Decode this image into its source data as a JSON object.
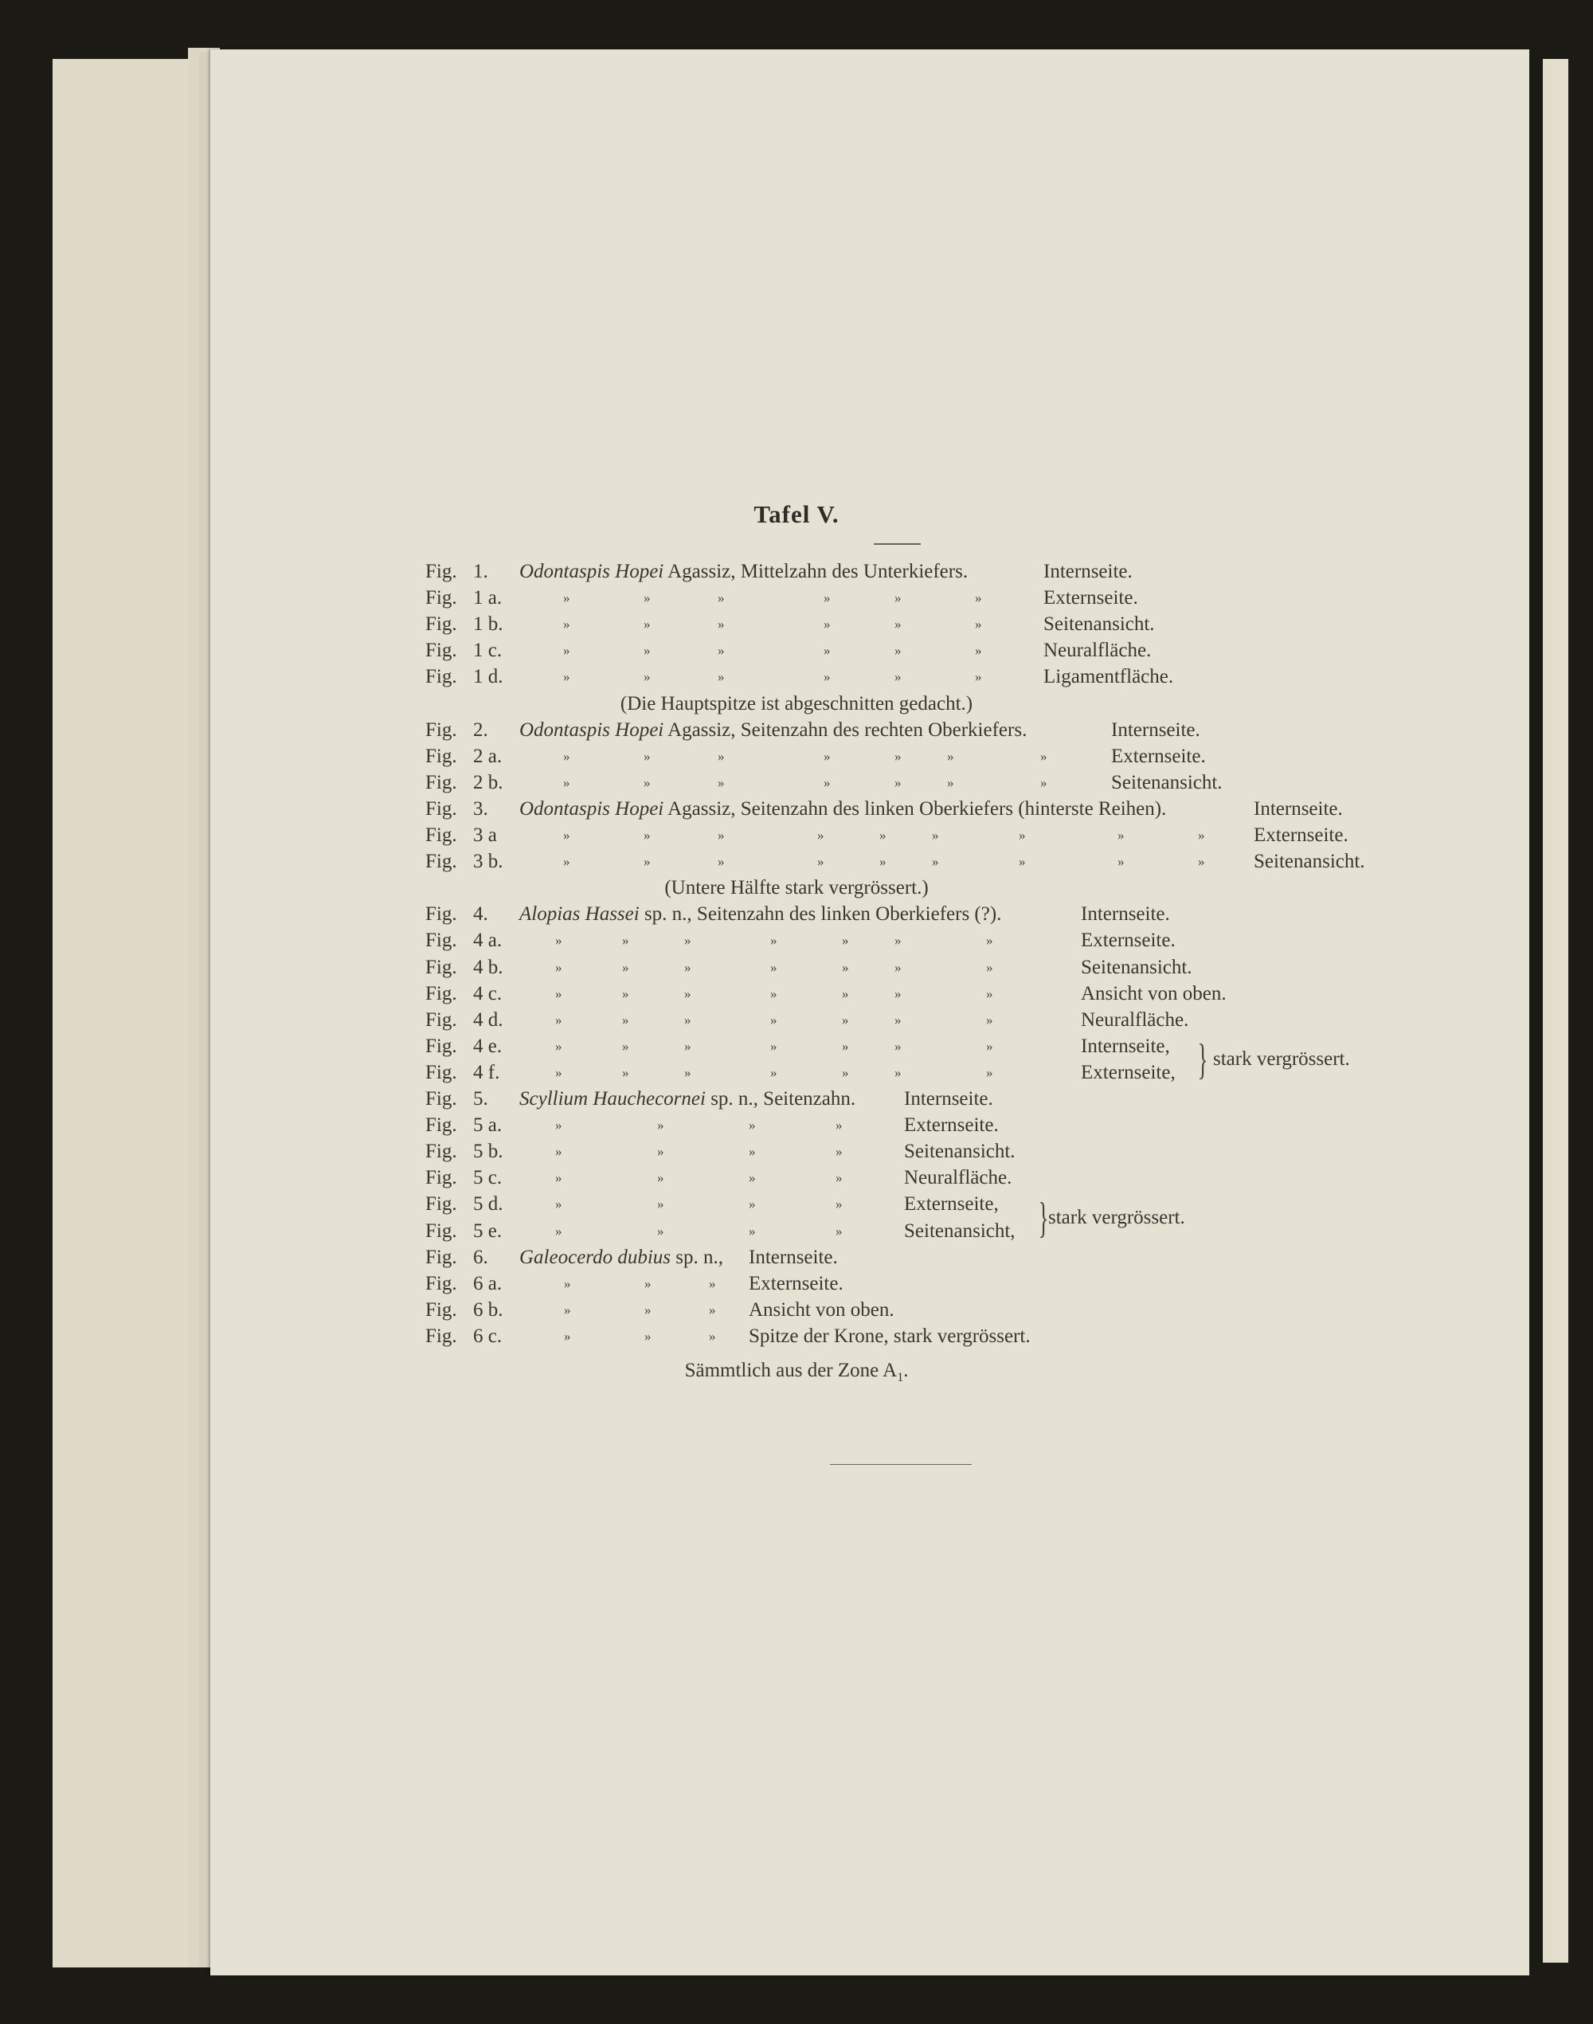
{
  "title": "Tafel V.",
  "rows": [
    {
      "fig": "Fig.",
      "num": "1.",
      "species": "Odontaspis Hopei",
      "rest": " Agassiz, Mittelzahn des Unterkiefers.",
      "view": "Internseite.",
      "group": 1
    },
    {
      "fig": "Fig.",
      "num": "1 a.",
      "ditto": 6,
      "view": "Externseite.",
      "group": 1
    },
    {
      "fig": "Fig.",
      "num": "1 b.",
      "ditto": 6,
      "view": "Seitenansicht.",
      "group": 1
    },
    {
      "fig": "Fig.",
      "num": "1 c.",
      "ditto": 6,
      "view": "Neuralfläche.",
      "group": 1
    },
    {
      "fig": "Fig.",
      "num": "1 d.",
      "ditto": 6,
      "view": "Ligamentfläche.",
      "group": 1
    },
    {
      "note": "(Die Hauptspitze ist abgeschnitten gedacht.)"
    },
    {
      "fig": "Fig.",
      "num": "2.",
      "species": "Odontaspis Hopei",
      "rest": " Agassiz, Seitenzahn des rechten Oberkiefers.",
      "view": "Internseite.",
      "group": 2
    },
    {
      "fig": "Fig.",
      "num": "2 a.",
      "ditto": 7,
      "view": "Externseite.",
      "group": 2
    },
    {
      "fig": "Fig.",
      "num": "2 b.",
      "ditto": 7,
      "view": "Seitenansicht.",
      "group": 2
    },
    {
      "fig": "Fig.",
      "num": "3.",
      "species": "Odontaspis Hopei",
      "rest": " Agassiz, Seitenzahn des linken Oberkiefers (hinterste Reihen).",
      "view": "Internseite.",
      "group": 3
    },
    {
      "fig": "Fig.",
      "num": "3 a",
      "ditto": 9,
      "view": "Externseite.",
      "group": 3
    },
    {
      "fig": "Fig.",
      "num": "3 b.",
      "ditto": 9,
      "view": "Seitenansicht.",
      "group": 3
    },
    {
      "note": "(Untere Hälfte stark vergrössert.)"
    },
    {
      "fig": "Fig.",
      "num": "4.",
      "species": "Alopias Hassei",
      "rest": " sp. n., Seitenzahn des linken Oberkiefers (?).",
      "view": "Internseite.",
      "group": 4
    },
    {
      "fig": "Fig.",
      "num": "4 a.",
      "ditto": 7,
      "view": "Externseite.",
      "group": 4
    },
    {
      "fig": "Fig.",
      "num": "4 b.",
      "ditto": 7,
      "view": "Seitenansicht.",
      "group": 4
    },
    {
      "fig": "Fig.",
      "num": "4 c.",
      "ditto": 7,
      "view": "Ansicht von oben.",
      "group": 4
    },
    {
      "fig": "Fig.",
      "num": "4 d.",
      "ditto": 7,
      "view": "Neuralfläche.",
      "group": 4
    },
    {
      "fig": "Fig.",
      "num": "4 e.",
      "ditto": 7,
      "view": "Internseite,",
      "group": 4
    },
    {
      "fig": "Fig.",
      "num": "4 f.",
      "ditto": 7,
      "view": "Externseite,",
      "group": 4
    },
    {
      "fig": "Fig.",
      "num": "5.",
      "species": "Scyllium Hauchecornei",
      "rest": " sp. n., Seitenzahn.",
      "view": "Internseite.",
      "group": 5
    },
    {
      "fig": "Fig.",
      "num": "5 a.",
      "ditto": 4,
      "view": "Externseite.",
      "group": 5
    },
    {
      "fig": "Fig.",
      "num": "5 b.",
      "ditto": 4,
      "view": "Seitenansicht.",
      "group": 5
    },
    {
      "fig": "Fig.",
      "num": "5 c.",
      "ditto": 4,
      "view": "Neuralfläche.",
      "group": 5
    },
    {
      "fig": "Fig.",
      "num": "5 d.",
      "ditto": 4,
      "view": "Externseite,",
      "group": 5
    },
    {
      "fig": "Fig.",
      "num": "5 e.",
      "ditto": 4,
      "view": "Seitenansicht,",
      "group": 5
    },
    {
      "fig": "Fig.",
      "num": "6.",
      "species": "Galeocerdo dubius",
      "rest": " sp. n.,",
      "view": "Internseite.",
      "group": 6
    },
    {
      "fig": "Fig.",
      "num": "6 a.",
      "ditto": 3,
      "view": "Externseite.",
      "group": 6
    },
    {
      "fig": "Fig.",
      "num": "6 b.",
      "ditto": 3,
      "view": "Ansicht von oben.",
      "group": 6
    },
    {
      "fig": "Fig.",
      "num": "6 c.",
      "ditto": 3,
      "view": "Spitze der Krone, stark vergrössert.",
      "group": 6
    }
  ],
  "ditto_mark": "»",
  "braces": [
    {
      "after_rows": "4 e., 4 f.",
      "text": "stark vergrössert."
    },
    {
      "after_rows": "5 d., 5 e.",
      "text": "stark vergrössert."
    }
  ],
  "footer": {
    "text": "Sämmtlich aus der Zone A",
    "subscript": "1",
    "end": "."
  }
}
